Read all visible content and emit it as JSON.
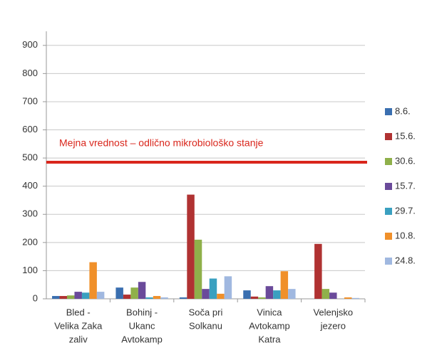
{
  "chart_data": {
    "type": "bar",
    "categories": [
      [
        "Bled -",
        "Velika Zaka",
        "zaliv"
      ],
      [
        "Bohinj -",
        "Ukanc",
        "Avtokamp"
      ],
      [
        "Soča pri",
        "Solkanu"
      ],
      [
        "Vinica",
        "Avtokamp",
        "Katra"
      ],
      [
        "Velenjsko",
        "jezero"
      ]
    ],
    "series": [
      {
        "name": "8.6.",
        "color": "#3a6fb0",
        "values": [
          10,
          40,
          5,
          30,
          0
        ]
      },
      {
        "name": "15.6.",
        "color": "#b03232",
        "values": [
          10,
          15,
          370,
          8,
          195
        ]
      },
      {
        "name": "30.6.",
        "color": "#8fb04a",
        "values": [
          12,
          40,
          210,
          5,
          35
        ]
      },
      {
        "name": "15.7.",
        "color": "#6a4a9a",
        "values": [
          25,
          60,
          35,
          45,
          22
        ]
      },
      {
        "name": "29.7.",
        "color": "#3aa0c0",
        "values": [
          22,
          5,
          72,
          30,
          0
        ]
      },
      {
        "name": "10.8.",
        "color": "#f0902a",
        "values": [
          130,
          10,
          18,
          98,
          5
        ]
      },
      {
        "name": "24.8.",
        "color": "#a0b8e0",
        "values": [
          25,
          5,
          80,
          35,
          3
        ]
      }
    ],
    "threshold": {
      "label": "Mejna vrednost – odlično mikrobiološko stanje",
      "value": 485,
      "color": "#d9261c"
    },
    "ylim": [
      0,
      950
    ],
    "yticks": [
      0,
      100,
      200,
      300,
      400,
      500,
      600,
      700,
      800,
      900
    ],
    "grid": true,
    "legend": "right"
  }
}
